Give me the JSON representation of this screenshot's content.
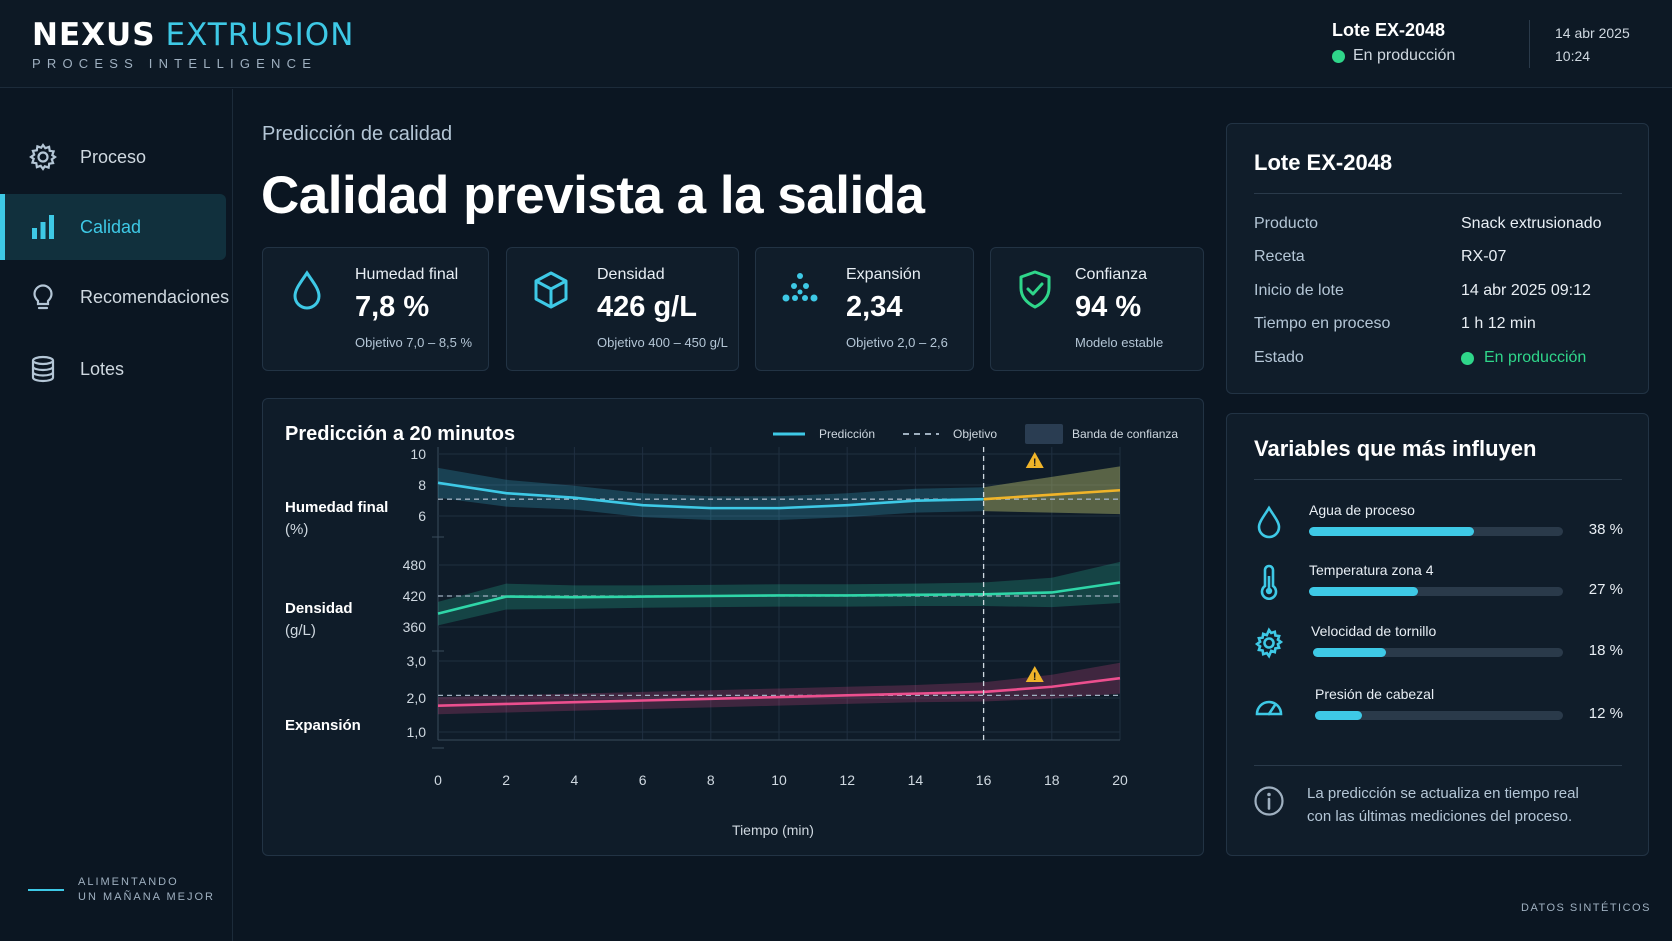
{
  "header": {
    "logo_primary": "NEXUS",
    "logo_secondary": "EXTRUSION",
    "logo_tagline": "PROCESS INTELLIGENCE",
    "lote": "Lote EX-2048",
    "status": "En producción",
    "date": "14 abr 2025",
    "time": "10:24"
  },
  "sidebar": {
    "items": [
      {
        "label": "Proceso",
        "icon": "gear-icon",
        "active": false
      },
      {
        "label": "Calidad",
        "icon": "bar-chart-icon",
        "active": true
      },
      {
        "label": "Recomendaciones",
        "icon": "lightbulb-icon",
        "active": false
      },
      {
        "label": "Lotes",
        "icon": "database-icon",
        "active": false
      }
    ],
    "footer_line1": "ALIMENTANDO",
    "footer_line2": "UN MAÑANA MEJOR"
  },
  "page": {
    "kicker": "Predicción de calidad",
    "title": "Calidad prevista a la salida"
  },
  "kpis": [
    {
      "label": "Humedad final",
      "value": "7,8 %",
      "sub": "Objetivo 7,0 – 8,5 %",
      "icon": "droplet-icon"
    },
    {
      "label": "Densidad",
      "value": "426 g/L",
      "sub": "Objetivo 400 – 450 g/L",
      "icon": "cube-icon"
    },
    {
      "label": "Expansión",
      "value": "2,34",
      "sub": "Objetivo 2,0 – 2,6",
      "icon": "expansion-dots-icon"
    },
    {
      "label": "Confianza",
      "value": "94 %",
      "sub": "Modelo estable",
      "icon": "shield-check-icon"
    }
  ],
  "chart_panel": {
    "title": "Predicción a 20 minutos",
    "legend": {
      "prediction": "Predicción",
      "target": "Objetivo",
      "band": "Banda de confianza"
    },
    "row_labels": [
      {
        "line1": "Humedad final",
        "line2": "(%)"
      },
      {
        "line1": "Densidad",
        "line2": "(g/L)"
      },
      {
        "line1": "Expansión",
        "line2": ""
      }
    ]
  },
  "chart_data": {
    "type": "line",
    "xlabel": "Tiempo (min)",
    "x_ticks": [
      0,
      2,
      4,
      6,
      8,
      10,
      12,
      14,
      16,
      18,
      20
    ],
    "xlim": [
      0,
      20
    ],
    "forecast_start": 16,
    "grid": true,
    "legend_position": "top-right",
    "panels": [
      {
        "name": "Humedad final (%)",
        "ylim": [
          5,
          10.5
        ],
        "y_ticks": [
          "10",
          "8",
          "6"
        ],
        "target": 7.0,
        "x": [
          0,
          2,
          4,
          6,
          8,
          10,
          12,
          14,
          16,
          18,
          20
        ],
        "values": [
          8.1,
          7.4,
          7.1,
          6.6,
          6.4,
          6.4,
          6.6,
          6.9,
          7.0,
          7.3,
          7.6
        ],
        "band_half_width": [
          1.0,
          0.9,
          0.8,
          0.8,
          0.8,
          0.8,
          0.8,
          0.8,
          0.8,
          1.2,
          1.6
        ],
        "color": "#3ec9e6",
        "forecast_color": "#f0b429",
        "warning_at": 17.5
      },
      {
        "name": "Densidad (g/L)",
        "ylim": [
          340,
          500
        ],
        "y_ticks": [
          "480",
          "420",
          "360"
        ],
        "target": 420,
        "x": [
          0,
          2,
          4,
          6,
          8,
          10,
          12,
          14,
          16,
          18,
          20
        ],
        "values": [
          390,
          419,
          418,
          419,
          420,
          421,
          421,
          422,
          423,
          426,
          443
        ],
        "band_half_width": [
          20,
          22,
          20,
          19,
          19,
          19,
          19,
          19,
          20,
          25,
          35
        ],
        "color": "#2fd6a8",
        "forecast_color": "#2fd6a8"
      },
      {
        "name": "Expansión",
        "ylim": [
          0.9,
          3.2
        ],
        "y_ticks": [
          "3,0",
          "2,0",
          "1,0"
        ],
        "target": 2.2,
        "x": [
          0,
          2,
          4,
          6,
          8,
          10,
          12,
          14,
          16,
          18,
          20
        ],
        "values": [
          1.9,
          1.95,
          2.0,
          2.05,
          2.1,
          2.15,
          2.2,
          2.25,
          2.3,
          2.45,
          2.7
        ],
        "band_half_width": [
          0.25,
          0.25,
          0.25,
          0.25,
          0.25,
          0.25,
          0.25,
          0.25,
          0.28,
          0.35,
          0.45
        ],
        "color": "#ec4f8e",
        "forecast_color": "#ec4f8e",
        "warning_at": 17.5
      }
    ]
  },
  "lote_card": {
    "title": "Lote EX-2048",
    "rows": [
      {
        "key": "Producto",
        "value": "Snack extrusionado"
      },
      {
        "key": "Receta",
        "value": "RX-07"
      },
      {
        "key": "Inicio de lote",
        "value": "14 abr 2025 09:12"
      },
      {
        "key": "Tiempo en proceso",
        "value": "1 h 12 min"
      },
      {
        "key": "Estado",
        "value": "En producción"
      }
    ]
  },
  "variables_card": {
    "title": "Variables que más influyen",
    "items": [
      {
        "name": "Agua de proceso",
        "pct_label": "38 %",
        "fraction": 0.65,
        "icon": "droplet-icon"
      },
      {
        "name": "Temperatura zona 4",
        "pct_label": "27 %",
        "fraction": 0.43,
        "icon": "thermometer-icon"
      },
      {
        "name": "Velocidad de tornillo",
        "pct_label": "18 %",
        "fraction": 0.29,
        "icon": "gear-icon"
      },
      {
        "name": "Presión de cabezal",
        "pct_label": "12 %",
        "fraction": 0.19,
        "icon": "gauge-icon"
      }
    ],
    "info_line1": "La predicción se actualiza en tiempo real",
    "info_line2": "con las últimas mediciones del proceso."
  },
  "footer_note": "DATOS SINTÉTICOS",
  "colors": {
    "accent": "#3ec9e6",
    "status_green": "#2fd68a",
    "warning": "#f0b429",
    "background": "#0b1622"
  }
}
